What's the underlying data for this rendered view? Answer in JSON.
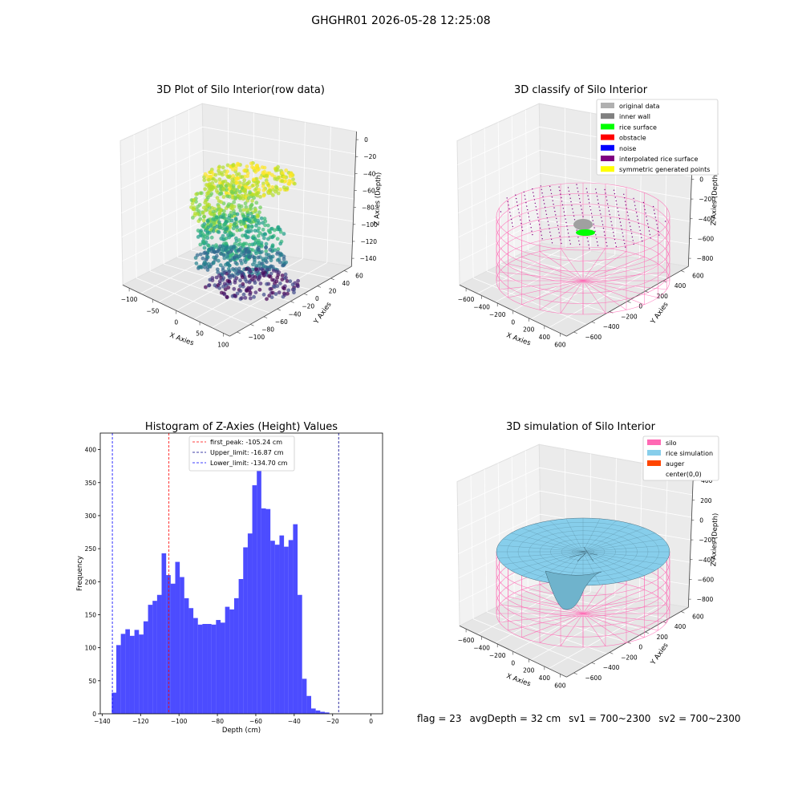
{
  "figure_title": "GHGHR01 2026-05-28 12:25:08",
  "status": {
    "flag": "flag = 23",
    "avg_depth": "avgDepth = 32 cm",
    "sv1": "sv1 = 700~2300",
    "sv2": "sv2 = 700~2300"
  },
  "chart_data": [
    {
      "type": "scatter",
      "projection": "3d",
      "title": "3D Plot of Silo Interior(row data)",
      "xlabel": "X Axies",
      "ylabel": "Y Axies",
      "zlabel": "Z Axies (Depth)",
      "x_ticks": [
        "−100",
        "−50",
        "0",
        "50",
        "100"
      ],
      "y_ticks": [
        "−100",
        "−80",
        "−60",
        "−40",
        "−20",
        "0",
        "20",
        "40",
        "60"
      ],
      "z_ticks": [
        "−140",
        "−120",
        "−100",
        "−80",
        "−60",
        "−40",
        "−20",
        "0"
      ],
      "xlim": [
        -130,
        120
      ],
      "ylim": [
        -100,
        70
      ],
      "zlim": [
        -145,
        5
      ],
      "colormap": "viridis",
      "grid": true
    },
    {
      "type": "scatter",
      "projection": "3d",
      "title": "3D classify of Silo Interior",
      "xlabel": "X Axies",
      "ylabel": "Y Axies",
      "zlabel": "Z Axies (Depth)",
      "x_ticks": [
        "−600",
        "−400",
        "−200",
        "0",
        "200",
        "400",
        "600"
      ],
      "y_ticks": [
        "−600",
        "−400",
        "−200",
        "0",
        "200",
        "400",
        "600"
      ],
      "z_ticks": [
        "−800",
        "−600",
        "−400",
        "−200",
        "0",
        "200",
        "400"
      ],
      "legend_position": "top-right",
      "legend": [
        {
          "label": "original data",
          "color": "#b0b0b0"
        },
        {
          "label": "inner wall",
          "color": "#808080"
        },
        {
          "label": "rice surface",
          "color": "#00ff00"
        },
        {
          "label": "obstacle",
          "color": "#ff0000"
        },
        {
          "label": "noise",
          "color": "#0000ff"
        },
        {
          "label": "interpolated rice surface",
          "color": "#800080"
        },
        {
          "label": "symmetric generated points",
          "color": "#ffff00"
        }
      ],
      "silo_color": "#ff69b4",
      "grid": true
    },
    {
      "type": "bar",
      "title": "Histogram of Z-Axies (Height) Values",
      "xlabel": "Depth (cm)",
      "ylabel": "Frequency",
      "xlim": [
        -141,
        6
      ],
      "ylim": [
        0,
        425
      ],
      "x_ticks": [
        -140,
        -120,
        -100,
        -80,
        -60,
        -40,
        -20,
        0
      ],
      "y_ticks": [
        0,
        50,
        100,
        150,
        200,
        250,
        300,
        350,
        400
      ],
      "bin_start": -135,
      "bin_width": 2.36,
      "values": [
        32,
        104,
        121,
        128,
        118,
        127,
        120,
        140,
        165,
        171,
        180,
        243,
        210,
        197,
        230,
        207,
        175,
        160,
        145,
        135,
        136,
        136,
        135,
        142,
        138,
        162,
        158,
        175,
        204,
        252,
        273,
        346,
        402,
        311,
        310,
        262,
        256,
        270,
        253,
        263,
        287,
        180,
        53,
        27,
        8,
        5,
        3,
        2
      ],
      "bar_color": "#0000ff",
      "vlines": [
        {
          "x": -105.24,
          "label": "first_peak: -105.24 cm",
          "color": "#ff0000"
        },
        {
          "x": -16.87,
          "label": "Upper_limit: -16.87 cm",
          "color": "#00008b"
        },
        {
          "x": -134.7,
          "label": "Lower_limit: -134.70 cm",
          "color": "#0000ff"
        }
      ],
      "legend_position": "top-center",
      "grid": false
    },
    {
      "type": "surface",
      "projection": "3d",
      "title": "3D simulation of Silo Interior",
      "xlabel": "X Axies",
      "ylabel": "Y Axies",
      "zlabel": "Z Axies (Depth)",
      "x_ticks": [
        "−600",
        "−400",
        "−200",
        "0",
        "200",
        "400",
        "600"
      ],
      "y_ticks": [
        "−600",
        "−400",
        "−200",
        "0",
        "200",
        "400",
        "600"
      ],
      "z_ticks": [
        "−800",
        "−600",
        "−400",
        "−200",
        "0",
        "200",
        "400"
      ],
      "legend_position": "top-right",
      "legend": [
        {
          "label": "silo",
          "color": "#ff69b4"
        },
        {
          "label": "rice simulation",
          "color": "#87ceeb"
        },
        {
          "label": "auger",
          "color": "#ff4500"
        },
        {
          "label": "center(0,0)",
          "color": "#ffffff"
        }
      ],
      "grid": true
    }
  ]
}
